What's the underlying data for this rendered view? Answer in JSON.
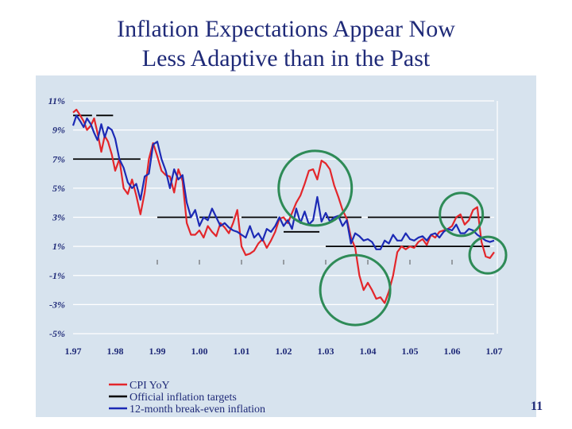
{
  "slide": {
    "title_line1": "Inflation Expectations Appear Now",
    "title_line2": "Less Adaptive than in the Past",
    "page_number": "11"
  },
  "colors": {
    "cpi": "#e3262b",
    "target": "#000000",
    "breakeven": "#1c2ab5",
    "highlight": "#2e8b57",
    "text": "#1f2a78",
    "grid": "#ffffff",
    "map": "#d7e3ee"
  },
  "chart_data": {
    "type": "line",
    "title": "",
    "xlabel": "",
    "ylabel": "",
    "ylim": [
      -5,
      11
    ],
    "xlim": [
      1997,
      2007
    ],
    "grid": true,
    "legend_position": "bottom",
    "y_ticks": [
      "11%",
      "9%",
      "7%",
      "5%",
      "3%",
      "1%",
      "-1%",
      "-3%",
      "-5%"
    ],
    "x_ticks": [
      "1.97",
      "1.98",
      "1.99",
      "1.00",
      "1.01",
      "1.02",
      "1.03",
      "1.04",
      "1.05",
      "1.06",
      "1.07"
    ],
    "series": [
      {
        "name": "CPI YoY",
        "x": [
          1997.0,
          1997.08,
          1997.17,
          1997.25,
          1997.33,
          1997.42,
          1997.5,
          1997.58,
          1997.67,
          1997.75,
          1997.83,
          1997.92,
          1998.0,
          1998.1,
          1998.2,
          1998.3,
          1998.4,
          1998.5,
          1998.6,
          1998.7,
          1998.8,
          1998.9,
          1999.0,
          1999.1,
          1999.2,
          1999.3,
          1999.4,
          1999.5,
          1999.6,
          1999.7,
          1999.8,
          1999.9,
          2000.0,
          2000.1,
          2000.2,
          2000.3,
          2000.4,
          2000.5,
          2000.6,
          2000.7,
          2000.8,
          2000.9,
          2001.0,
          2001.1,
          2001.2,
          2001.3,
          2001.4,
          2001.5,
          2001.6,
          2001.7,
          2001.8,
          2001.9,
          2002.0,
          2002.1,
          2002.2,
          2002.3,
          2002.4,
          2002.5,
          2002.6,
          2002.7,
          2002.8,
          2002.9,
          2003.0,
          2003.1,
          2003.2,
          2003.3,
          2003.4,
          2003.5,
          2003.6,
          2003.7,
          2003.8,
          2003.9,
          2004.0,
          2004.1,
          2004.2,
          2004.3,
          2004.4,
          2004.5,
          2004.6,
          2004.7,
          2004.8,
          2004.9,
          2005.0,
          2005.1,
          2005.2,
          2005.3,
          2005.4,
          2005.5,
          2005.6,
          2005.7,
          2005.8,
          2005.9,
          2006.0,
          2006.1,
          2006.2,
          2006.3,
          2006.4,
          2006.5,
          2006.6,
          2006.7,
          2006.8,
          2006.9,
          2007.0
        ],
        "values": [
          10.2,
          10.4,
          10.0,
          9.6,
          9.0,
          9.3,
          9.8,
          8.8,
          7.5,
          8.6,
          8.2,
          7.3,
          6.2,
          7.0,
          5.0,
          4.6,
          5.6,
          4.5,
          3.2,
          4.7,
          7.0,
          8.1,
          7.2,
          6.2,
          5.9,
          5.8,
          4.7,
          6.3,
          5.5,
          2.6,
          1.8,
          1.8,
          2.1,
          1.6,
          2.4,
          2.0,
          1.7,
          2.6,
          2.3,
          1.9,
          2.6,
          3.5,
          1.0,
          0.4,
          0.5,
          0.7,
          1.2,
          1.5,
          0.9,
          1.4,
          2.0,
          2.9,
          3.0,
          2.6,
          3.3,
          4.0,
          4.5,
          5.3,
          6.2,
          6.3,
          5.6,
          6.9,
          6.7,
          6.3,
          5.2,
          4.4,
          3.5,
          2.9,
          1.6,
          0.9,
          -1.0,
          -2.0,
          -1.5,
          -2.0,
          -2.6,
          -2.5,
          -2.9,
          -2.1,
          -1.0,
          0.6,
          1.0,
          0.8,
          1.0,
          0.9,
          1.3,
          1.5,
          1.1,
          1.8,
          1.6,
          2.0,
          2.1,
          2.2,
          2.4,
          3.0,
          3.2,
          2.5,
          2.8,
          3.5,
          3.7,
          1.3,
          0.3,
          0.2,
          0.6
        ]
      },
      {
        "name": "Official inflation targets",
        "segments": [
          {
            "x": [
              1997.0,
              1997.45
            ],
            "y": [
              10.0,
              10.0
            ]
          },
          {
            "x": [
              1997.55,
              1997.95
            ],
            "y": [
              10.0,
              10.0
            ]
          },
          {
            "x": [
              1997.0,
              1998.6
            ],
            "y": [
              7.0,
              7.0
            ]
          },
          {
            "x": [
              1999.0,
              1999.8
            ],
            "y": [
              3.0,
              3.0
            ]
          },
          {
            "x": [
              2000.0,
              2000.8
            ],
            "y": [
              3.0,
              3.0
            ]
          },
          {
            "x": [
              2001.0,
              2001.85
            ],
            "y": [
              3.0,
              3.0
            ]
          },
          {
            "x": [
              2002.0,
              2002.85
            ],
            "y": [
              2.0,
              2.0
            ]
          },
          {
            "x": [
              2003.0,
              2003.85
            ],
            "y": [
              3.0,
              3.0
            ]
          },
          {
            "x": [
              2004.0,
              2006.9
            ],
            "y": [
              3.0,
              3.0
            ]
          },
          {
            "x": [
              2003.0,
              2006.9
            ],
            "y": [
              1.0,
              1.0
            ]
          }
        ]
      },
      {
        "name": "12-month break-even inflation",
        "x": [
          1997.0,
          1997.08,
          1997.17,
          1997.25,
          1997.33,
          1997.42,
          1997.5,
          1997.58,
          1997.67,
          1997.75,
          1997.83,
          1997.92,
          1998.0,
          1998.1,
          1998.2,
          1998.3,
          1998.4,
          1998.5,
          1998.6,
          1998.7,
          1998.8,
          1998.9,
          1999.0,
          1999.1,
          1999.2,
          1999.3,
          1999.4,
          1999.5,
          1999.6,
          1999.7,
          1999.8,
          1999.9,
          2000.0,
          2000.1,
          2000.2,
          2000.3,
          2000.4,
          2000.5,
          2000.6,
          2000.7,
          2000.8,
          2000.9,
          2001.0,
          2001.1,
          2001.2,
          2001.3,
          2001.4,
          2001.5,
          2001.6,
          2001.7,
          2001.8,
          2001.9,
          2002.0,
          2002.1,
          2002.2,
          2002.3,
          2002.4,
          2002.5,
          2002.6,
          2002.7,
          2002.8,
          2002.9,
          2003.0,
          2003.1,
          2003.2,
          2003.3,
          2003.4,
          2003.5,
          2003.6,
          2003.7,
          2003.8,
          2003.9,
          2004.0,
          2004.1,
          2004.2,
          2004.3,
          2004.4,
          2004.5,
          2004.6,
          2004.7,
          2004.8,
          2004.9,
          2005.0,
          2005.1,
          2005.2,
          2005.3,
          2005.4,
          2005.5,
          2005.6,
          2005.7,
          2005.8,
          2005.9,
          2006.0,
          2006.1,
          2006.2,
          2006.3,
          2006.4,
          2006.5,
          2006.6,
          2006.7,
          2006.8,
          2006.9,
          2007.0
        ],
        "values": [
          9.3,
          10.0,
          9.6,
          9.2,
          9.8,
          9.4,
          8.8,
          8.3,
          9.4,
          8.5,
          9.2,
          9.0,
          8.4,
          7.0,
          6.4,
          5.4,
          5.0,
          5.3,
          4.2,
          5.8,
          6.0,
          8.0,
          8.2,
          7.0,
          6.2,
          5.0,
          6.3,
          5.6,
          5.9,
          4.0,
          3.0,
          3.5,
          2.4,
          3.0,
          2.8,
          3.6,
          3.0,
          2.4,
          2.6,
          2.3,
          2.1,
          2.0,
          1.8,
          1.6,
          2.4,
          1.6,
          1.9,
          1.4,
          2.2,
          2.0,
          2.4,
          3.0,
          2.4,
          2.8,
          2.2,
          3.6,
          2.6,
          3.4,
          2.5,
          2.8,
          4.4,
          2.7,
          3.3,
          2.7,
          3.0,
          3.1,
          2.4,
          2.8,
          1.2,
          1.9,
          1.7,
          1.4,
          1.5,
          1.3,
          0.8,
          0.8,
          1.4,
          1.2,
          1.8,
          1.4,
          1.4,
          1.9,
          1.5,
          1.4,
          1.6,
          1.7,
          1.4,
          1.8,
          1.9,
          1.6,
          2.0,
          2.2,
          2.1,
          2.5,
          1.9,
          1.9,
          2.2,
          2.1,
          1.8,
          1.6,
          1.4,
          1.3,
          1.4
        ]
      }
    ],
    "annotations": [
      "circle around 2002-2003 CPI peak",
      "circle around 2006 CPI peak",
      "circle around 2003-2004 CPI trough",
      "circle around 2007 CPI dip"
    ]
  }
}
